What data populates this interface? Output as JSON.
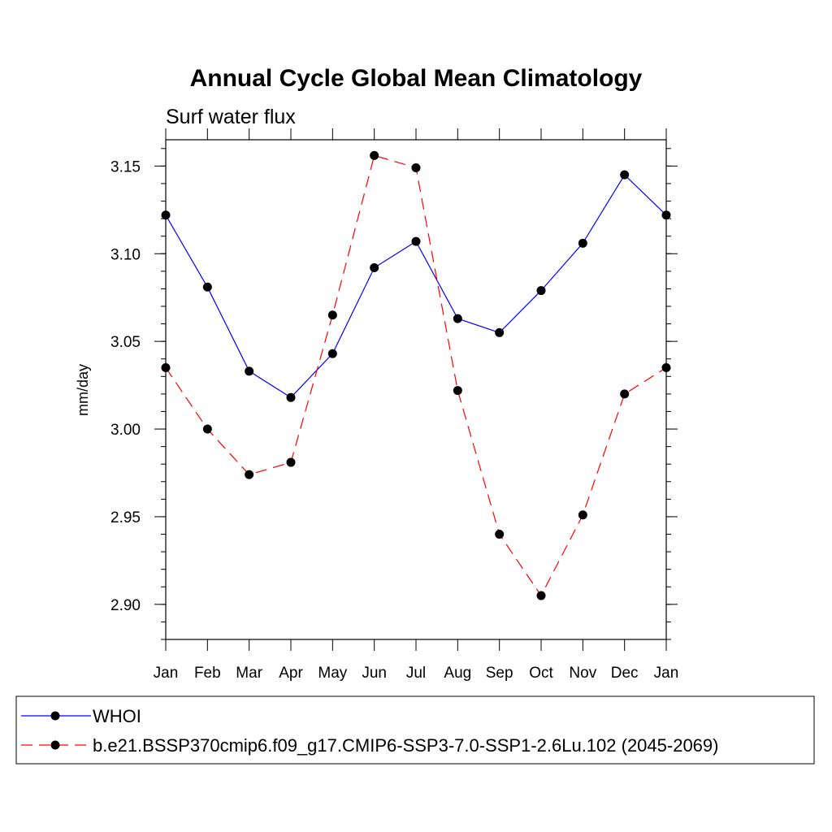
{
  "chart_data": {
    "type": "line",
    "title": "Annual Cycle Global Mean Climatology",
    "subtitle": "Surf water flux",
    "xlabel": "",
    "ylabel": "mm/day",
    "categories": [
      "Jan",
      "Feb",
      "Mar",
      "Apr",
      "May",
      "Jun",
      "Jul",
      "Aug",
      "Sep",
      "Oct",
      "Nov",
      "Dec",
      "Jan"
    ],
    "ylim": [
      2.88,
      3.165
    ],
    "yticks": [
      {
        "value": 2.9,
        "label": "2.90"
      },
      {
        "value": 2.95,
        "label": "2.95"
      },
      {
        "value": 3.0,
        "label": "3.00"
      },
      {
        "value": 3.05,
        "label": "3.05"
      },
      {
        "value": 3.1,
        "label": "3.10"
      },
      {
        "value": 3.15,
        "label": "3.15"
      }
    ],
    "grid": false,
    "legend_position": "bottom",
    "series": [
      {
        "name": "WHOI",
        "color": "#0000ff",
        "dash": "solid",
        "marker": "filled-circle",
        "values": [
          3.122,
          3.081,
          3.033,
          3.018,
          3.043,
          3.092,
          3.107,
          3.063,
          3.055,
          3.079,
          3.106,
          3.145,
          3.122
        ]
      },
      {
        "name": "b.e21.BSSP370cmip6.f09_g17.CMIP6-SSP3-7.0-SSP1-2.6Lu.102 (2045-2069)",
        "color": "#ff0000",
        "dash": "dashed",
        "marker": "filled-circle",
        "values": [
          3.035,
          3.0,
          2.974,
          2.981,
          3.065,
          3.156,
          3.149,
          3.022,
          2.94,
          2.905,
          2.951,
          3.02,
          3.035
        ]
      }
    ]
  }
}
